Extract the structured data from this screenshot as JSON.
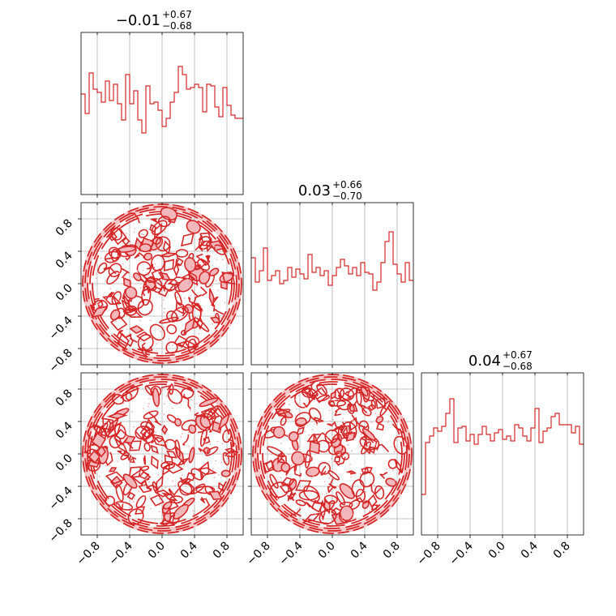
{
  "chart_data": {
    "type": "corner",
    "color": "#d62728",
    "fill_color": "#f2b8bb",
    "tick_labels": [
      "−0.8",
      "−0.4",
      "0.0",
      "0.4",
      "0.8"
    ],
    "tick_values": [
      -0.8,
      -0.4,
      0.0,
      0.4,
      0.8
    ],
    "range": [
      -1.0,
      1.0
    ],
    "grid": true,
    "titles": [
      {
        "value": "−0.01",
        "plus": "+0.67",
        "minus": "−0.68"
      },
      {
        "value": "0.03",
        "plus": "+0.66",
        "minus": "−0.70"
      },
      {
        "value": "0.04",
        "plus": "+0.67",
        "minus": "−0.68"
      }
    ],
    "histograms": [
      {
        "name": "param-1",
        "x_range": [
          -1.0,
          1.0
        ],
        "values": [
          0.62,
          0.5,
          0.75,
          0.65,
          0.63,
          0.57,
          0.7,
          0.58,
          0.68,
          0.56,
          0.46,
          0.74,
          0.56,
          0.64,
          0.46,
          0.38,
          0.67,
          0.56,
          0.57,
          0.52,
          0.42,
          0.47,
          0.57,
          0.63,
          0.79,
          0.74,
          0.65,
          0.66,
          0.68,
          0.66,
          0.51,
          0.68,
          0.67,
          0.54,
          0.48,
          0.66,
          0.55,
          0.49,
          0.47,
          0.47
        ],
        "ylim": [
          0,
          1
        ]
      },
      {
        "name": "param-2",
        "x_range": [
          -1.0,
          1.0
        ],
        "values": [
          0.66,
          0.51,
          0.58,
          0.72,
          0.52,
          0.55,
          0.58,
          0.5,
          0.52,
          0.6,
          0.54,
          0.59,
          0.56,
          0.53,
          0.68,
          0.57,
          0.6,
          0.55,
          0.58,
          0.49,
          0.55,
          0.6,
          0.65,
          0.61,
          0.56,
          0.6,
          0.55,
          0.63,
          0.57,
          0.56,
          0.46,
          0.51,
          0.63,
          0.76,
          0.82,
          0.62,
          0.56,
          0.51,
          0.63,
          0.52
        ],
        "ylim": [
          0,
          1
        ]
      },
      {
        "name": "param-3",
        "x_range": [
          -1.0,
          1.0
        ],
        "values": [
          0.25,
          0.57,
          0.61,
          0.66,
          0.64,
          0.67,
          0.75,
          0.84,
          0.57,
          0.66,
          0.67,
          0.58,
          0.62,
          0.56,
          0.62,
          0.67,
          0.62,
          0.58,
          0.63,
          0.65,
          0.59,
          0.61,
          0.58,
          0.68,
          0.66,
          0.61,
          0.58,
          0.66,
          0.78,
          0.57,
          0.64,
          0.66,
          0.73,
          0.75,
          0.68,
          0.68,
          0.68,
          0.63,
          0.67,
          0.56
        ],
        "ylim": [
          0,
          1
        ]
      }
    ],
    "scatter_panels": [
      {
        "x_param": "param-1",
        "y_param": "param-2",
        "xlim": [
          -1.0,
          1.0
        ],
        "ylim": [
          -1.0,
          1.0
        ],
        "support": "unit-disk"
      },
      {
        "x_param": "param-1",
        "y_param": "param-3",
        "xlim": [
          -1.0,
          1.0
        ],
        "ylim": [
          -1.0,
          1.0
        ],
        "support": "unit-disk"
      },
      {
        "x_param": "param-2",
        "y_param": "param-3",
        "xlim": [
          -1.0,
          1.0
        ],
        "ylim": [
          -1.0,
          1.0
        ],
        "support": "unit-disk"
      }
    ]
  }
}
